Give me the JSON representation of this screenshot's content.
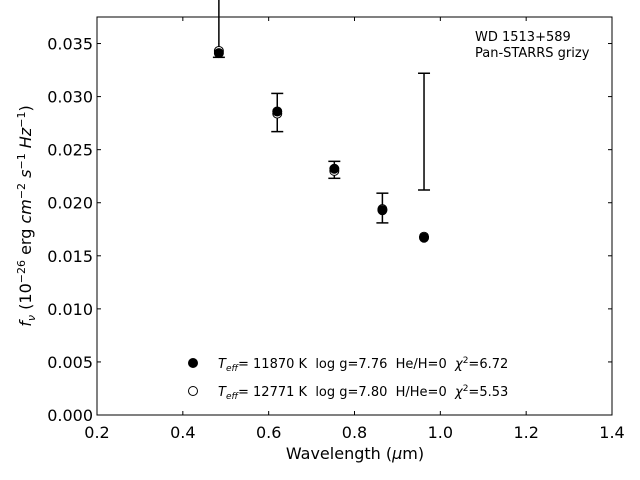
{
  "chart_data": {
    "type": "scatter",
    "annotation": [
      "WD 1513+589",
      "Pan-STARRS grizy"
    ],
    "xlabel": "Wavelength (μm)",
    "ylabel": "f_ν (10^-26 erg cm^-2 s^-1 Hz^-1)",
    "xlim": [
      0.2,
      1.4
    ],
    "ylim": [
      0.0,
      0.0375
    ],
    "xticks": [
      "0.2",
      "0.4",
      "0.6",
      "0.8",
      "1.0",
      "1.2",
      "1.4"
    ],
    "yticks": [
      "0.000",
      "0.005",
      "0.010",
      "0.015",
      "0.020",
      "0.025",
      "0.030",
      "0.035"
    ],
    "grid": false,
    "legend_position": "bottom-center",
    "observed": {
      "x": [
        0.484,
        0.62,
        0.753,
        0.865,
        0.962
      ],
      "y": [
        0.0376,
        0.0285,
        0.0231,
        0.0195,
        0.0267
      ],
      "yerr": [
        0.0039,
        0.0018,
        0.0008,
        0.0014,
        0.0055
      ]
    },
    "series": [
      {
        "name": "T_eff= 11870 K  log g=7.76  He/H=0  χ²=6.72",
        "marker": "filled",
        "x": [
          0.484,
          0.62,
          0.753,
          0.865,
          0.962
        ],
        "y": [
          0.0341,
          0.0286,
          0.0232,
          0.0193,
          0.0167
        ]
      },
      {
        "name": "T_eff= 12771 K  log g=7.80  H/He=0  χ²=5.53",
        "marker": "open",
        "x": [
          0.484,
          0.62,
          0.753,
          0.865,
          0.962
        ],
        "y": [
          0.0343,
          0.0284,
          0.023,
          0.0194,
          0.0168
        ]
      }
    ],
    "legend": [
      {
        "marker": "filled",
        "teff": "11870",
        "rest": "K  log g=7.76  He/H=0  ",
        "chi2": "6.72"
      },
      {
        "marker": "open",
        "teff": "12771",
        "rest": "K  log g=7.80  H/He=0  ",
        "chi2": "5.53"
      }
    ]
  }
}
